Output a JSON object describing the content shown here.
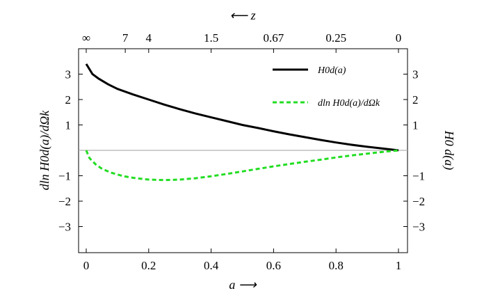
{
  "chart_data": {
    "type": "line",
    "xlabel": "a ⟶",
    "x2label": "⟵ z",
    "ylabel_left": "dln H0d(a)/dΩk",
    "ylabel_right": "H0 d(a)",
    "xlim": [
      0,
      1
    ],
    "ylim": [
      -4,
      4
    ],
    "x_ticks": [
      0,
      0.2,
      0.4,
      0.6,
      0.8,
      1
    ],
    "x_tick_labels": [
      "0",
      "0.2",
      "0.4",
      "0.6",
      "0.8",
      "1"
    ],
    "top_ticks": [
      {
        "a": 0,
        "label": "∞"
      },
      {
        "a": 0.125,
        "label": "7"
      },
      {
        "a": 0.2,
        "label": "4"
      },
      {
        "a": 0.4,
        "label": "1.5"
      },
      {
        "a": 0.6,
        "label": "0.67"
      },
      {
        "a": 0.8,
        "label": "0.25"
      },
      {
        "a": 1,
        "label": "0"
      }
    ],
    "y_ticks": [
      -3,
      -2,
      -1,
      1,
      2,
      3
    ],
    "y_tick_labels": [
      "−3",
      "−2",
      "−1",
      "1",
      "2",
      "3"
    ],
    "zero_line": true,
    "legend_position": "top-right",
    "series": [
      {
        "name": "H0d(a)",
        "style": "solid",
        "color": "#000000",
        "points": [
          [
            0,
            3.4
          ],
          [
            0.01,
            3.2
          ],
          [
            0.02,
            3.0
          ],
          [
            0.04,
            2.82
          ],
          [
            0.07,
            2.6
          ],
          [
            0.1,
            2.42
          ],
          [
            0.15,
            2.2
          ],
          [
            0.2,
            2.0
          ],
          [
            0.25,
            1.8
          ],
          [
            0.3,
            1.62
          ],
          [
            0.35,
            1.45
          ],
          [
            0.4,
            1.3
          ],
          [
            0.45,
            1.15
          ],
          [
            0.5,
            1.0
          ],
          [
            0.55,
            0.88
          ],
          [
            0.6,
            0.75
          ],
          [
            0.65,
            0.63
          ],
          [
            0.7,
            0.52
          ],
          [
            0.75,
            0.41
          ],
          [
            0.8,
            0.31
          ],
          [
            0.85,
            0.22
          ],
          [
            0.9,
            0.14
          ],
          [
            0.95,
            0.07
          ],
          [
            1.0,
            0.0
          ]
        ]
      },
      {
        "name": "dln H0d(a)/dΩk",
        "style": "dashed",
        "color": "#22dd22",
        "points": [
          [
            0,
            0.0
          ],
          [
            0.01,
            -0.3
          ],
          [
            0.03,
            -0.55
          ],
          [
            0.05,
            -0.72
          ],
          [
            0.08,
            -0.88
          ],
          [
            0.12,
            -1.02
          ],
          [
            0.16,
            -1.1
          ],
          [
            0.2,
            -1.15
          ],
          [
            0.25,
            -1.17
          ],
          [
            0.3,
            -1.15
          ],
          [
            0.35,
            -1.1
          ],
          [
            0.4,
            -1.02
          ],
          [
            0.45,
            -0.93
          ],
          [
            0.5,
            -0.83
          ],
          [
            0.55,
            -0.73
          ],
          [
            0.6,
            -0.63
          ],
          [
            0.65,
            -0.54
          ],
          [
            0.7,
            -0.45
          ],
          [
            0.75,
            -0.37
          ],
          [
            0.8,
            -0.28
          ],
          [
            0.85,
            -0.2
          ],
          [
            0.9,
            -0.13
          ],
          [
            0.95,
            -0.06
          ],
          [
            1.0,
            0.0
          ]
        ]
      }
    ]
  }
}
